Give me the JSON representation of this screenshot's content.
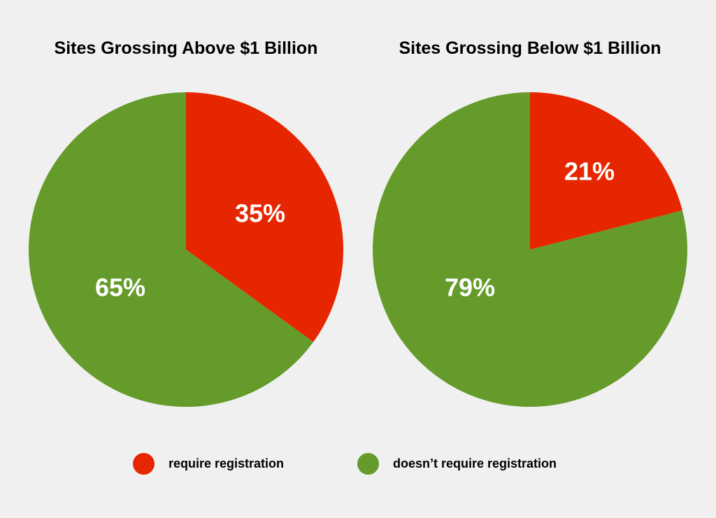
{
  "colors": {
    "require": "#e62600",
    "not_require": "#649b2a",
    "background": "#f0f0f0"
  },
  "legend": [
    {
      "label": "require registration",
      "color": "#e62600"
    },
    {
      "label": "doesn’t require registration",
      "color": "#649b2a"
    }
  ],
  "chart_data": [
    {
      "type": "pie",
      "title": "Sites Grossing Above $1 Billion",
      "slices": [
        {
          "label": "require registration",
          "value": 35,
          "display": "35%",
          "color": "#e62600"
        },
        {
          "label": "doesn’t require registration",
          "value": 65,
          "display": "65%",
          "color": "#649b2a"
        }
      ]
    },
    {
      "type": "pie",
      "title": "Sites Grossing Below $1 Billion",
      "slices": [
        {
          "label": "require registration",
          "value": 21,
          "display": "21%",
          "color": "#e62600"
        },
        {
          "label": "doesn’t require registration",
          "value": 79,
          "display": "79%",
          "color": "#649b2a"
        }
      ]
    }
  ]
}
